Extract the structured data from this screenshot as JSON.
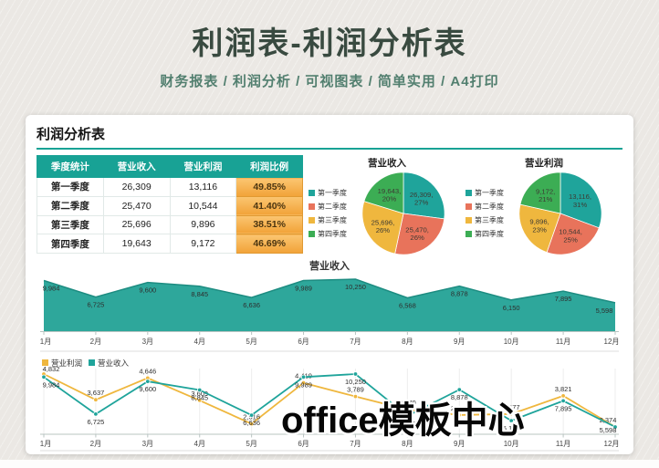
{
  "page": {
    "title": "利润表-利润分析表",
    "subtitle": "财务报表 / 利润分析 / 可视图表 / 简单实用 / A4打印"
  },
  "card": {
    "heading": "利润分析表"
  },
  "table": {
    "headers": [
      "季度统计",
      "营业收入",
      "营业利润",
      "利润比例"
    ],
    "rows": [
      [
        "第一季度",
        "26,309",
        "13,116",
        "49.85%"
      ],
      [
        "第二季度",
        "25,470",
        "10,544",
        "41.40%"
      ],
      [
        "第三季度",
        "25,696",
        "9,896",
        "38.51%"
      ],
      [
        "第四季度",
        "19,643",
        "9,172",
        "46.69%"
      ]
    ]
  },
  "watermark": "office模板中心",
  "colors": {
    "teal": "#1FA49B",
    "salmon": "#E8735B",
    "yellow": "#EFB73E",
    "green": "#3CAD54",
    "header_teal": "#18A295",
    "ratio_orange": "#F1A238"
  },
  "chart_data": [
    {
      "type": "pie",
      "title": "营业收入",
      "legend_position": "left",
      "categories": [
        "第一季度",
        "第二季度",
        "第三季度",
        "第四季度"
      ],
      "values": [
        26309,
        25470,
        25696,
        19643
      ],
      "percent_labels": [
        "27%",
        "26%",
        "26%",
        "20%"
      ],
      "colors": [
        "#1FA49B",
        "#E8735B",
        "#EFB73E",
        "#3CAD54"
      ]
    },
    {
      "type": "pie",
      "title": "营业利润",
      "legend_position": "left",
      "categories": [
        "第一季度",
        "第二季度",
        "第三季度",
        "第四季度"
      ],
      "values": [
        13116,
        10544,
        9896,
        9172
      ],
      "percent_labels": [
        "31%",
        "25%",
        "23%",
        "21%"
      ],
      "colors": [
        "#1FA49B",
        "#E8735B",
        "#EFB73E",
        "#3CAD54"
      ]
    },
    {
      "type": "area",
      "title": "营业收入",
      "x": [
        "1月",
        "2月",
        "3月",
        "4月",
        "5月",
        "6月",
        "7月",
        "8月",
        "9月",
        "10月",
        "11月",
        "12月"
      ],
      "values": [
        9984,
        6725,
        9600,
        8845,
        6636,
        9989,
        10250,
        6568,
        8878,
        6150,
        7895,
        5598
      ],
      "color": "#2EA79B",
      "ylim": [
        0,
        10250
      ],
      "grid": false,
      "data_labels": true
    },
    {
      "type": "line",
      "x": [
        "1月",
        "2月",
        "3月",
        "4月",
        "5月",
        "6月",
        "7月",
        "8月",
        "9月",
        "10月",
        "11月",
        "12月"
      ],
      "series": [
        {
          "name": "营业利润",
          "color": "#EFB73E",
          "values": [
            4832,
            3637,
            4646,
            3609,
            2516,
            4419,
            3789,
            3179,
            2928,
            2977,
            3821,
            2374
          ]
        },
        {
          "name": "营业收入",
          "color": "#1FA49B",
          "values": [
            9984,
            6725,
            9600,
            8845,
            6636,
            9989,
            10250,
            6568,
            8878,
            6150,
            7895,
            5598
          ]
        }
      ],
      "legend_position": "top-left",
      "grid": true,
      "data_labels": true
    }
  ]
}
